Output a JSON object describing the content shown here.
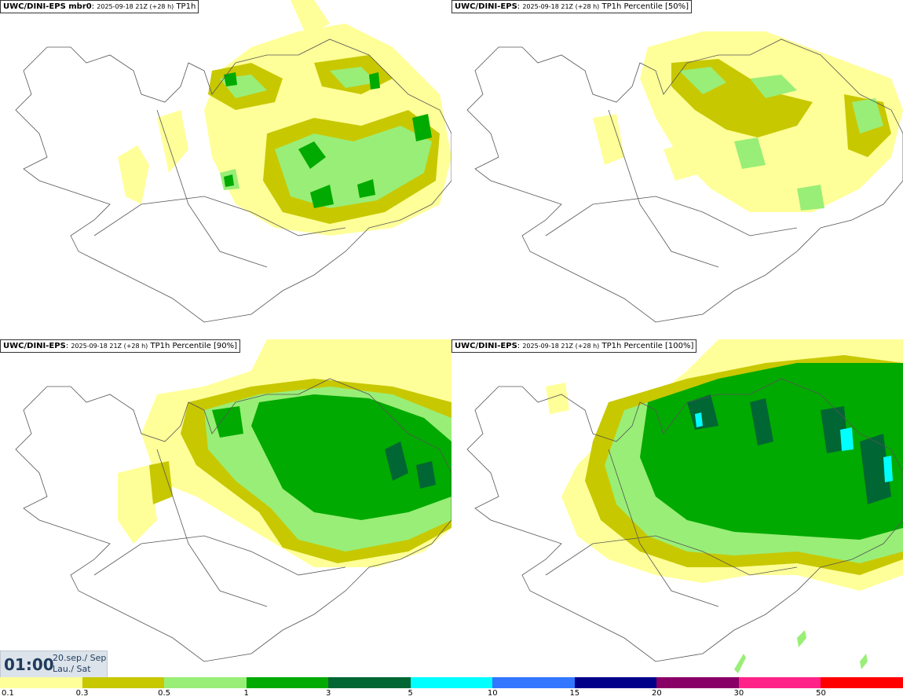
{
  "panels": [
    {
      "model": "UWC/DINI-EPS mbr0",
      "run": "2025-09-18 21Z (+28 h)",
      "product": "TP1h"
    },
    {
      "model": "UWC/DINI-EPS",
      "run": "2025-09-18 21Z (+28 h)",
      "product": "TP1h Percentile [50%]"
    },
    {
      "model": "UWC/DINI-EPS",
      "run": "2025-09-18 21Z (+28 h)",
      "product": "TP1h Percentile [90%]"
    },
    {
      "model": "UWC/DINI-EPS",
      "run": "2025-09-18 21Z (+28 h)",
      "product": "TP1h Percentile [100%]"
    }
  ],
  "valid": {
    "time": "01:00",
    "date_line1": "20.sep./ Sep",
    "date_line2": "Lau./ Sat"
  },
  "colorbar": {
    "colors": [
      "#ffff99",
      "#c8c800",
      "#99ee77",
      "#00aa00",
      "#006633",
      "#00ffff",
      "#3377ff",
      "#000088",
      "#880066",
      "#ff2288",
      "#ff0000"
    ],
    "labels": [
      "0.1",
      "0.3",
      "0.5",
      "1",
      "3",
      "5",
      "10",
      "15",
      "20",
      "30",
      "50"
    ]
  }
}
